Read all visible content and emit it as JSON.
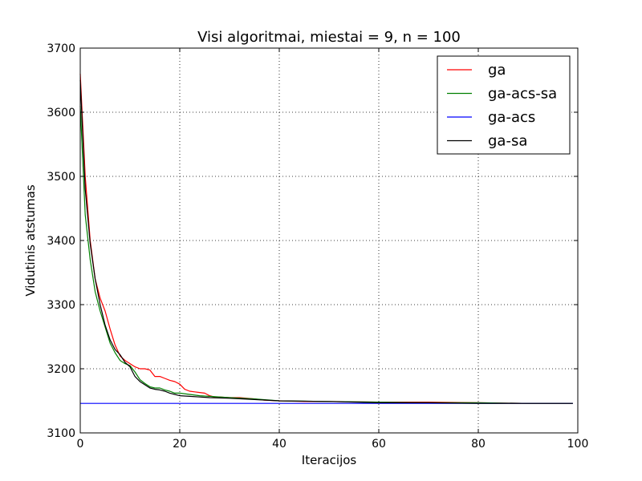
{
  "chart_data": {
    "type": "line",
    "title": "Visi algoritmai, miestai = 9, n = 100",
    "xlabel": "Iteracijos",
    "ylabel": "Vidutinis atstumas",
    "xlim": [
      0,
      100
    ],
    "ylim": [
      3100,
      3700
    ],
    "xticks": [
      0,
      20,
      40,
      60,
      80,
      100
    ],
    "yticks": [
      3100,
      3200,
      3300,
      3400,
      3500,
      3600,
      3700
    ],
    "grid": true,
    "legend_position": "top-right",
    "series": [
      {
        "name": "ga",
        "color": "#ff0000",
        "x": [
          0,
          1,
          2,
          3,
          4,
          5,
          6,
          7,
          8,
          9,
          10,
          11,
          12,
          13,
          14,
          15,
          16,
          17,
          18,
          19,
          20,
          21,
          22,
          23,
          24,
          25,
          26,
          27,
          28,
          30,
          32,
          35,
          37,
          40,
          45,
          50,
          60,
          70,
          80,
          90,
          99
        ],
        "y": [
          3660,
          3500,
          3400,
          3340,
          3310,
          3290,
          3262,
          3237,
          3220,
          3213,
          3208,
          3203,
          3200,
          3200,
          3198,
          3188,
          3188,
          3185,
          3182,
          3180,
          3176,
          3168,
          3165,
          3164,
          3163,
          3162,
          3158,
          3156,
          3156,
          3155,
          3155,
          3153,
          3151,
          3150,
          3149,
          3149,
          3148,
          3148,
          3147,
          3146,
          3146
        ]
      },
      {
        "name": "ga-acs-sa",
        "color": "#008000",
        "x": [
          0,
          1,
          2,
          3,
          4,
          5,
          6,
          7,
          8,
          9,
          10,
          11,
          12,
          13,
          14,
          15,
          16,
          17,
          18,
          19,
          20,
          22,
          24,
          26,
          30,
          35,
          40,
          50,
          60,
          70,
          80,
          90,
          99
        ],
        "y": [
          3610,
          3440,
          3370,
          3320,
          3290,
          3265,
          3240,
          3225,
          3213,
          3208,
          3205,
          3195,
          3183,
          3177,
          3172,
          3170,
          3170,
          3167,
          3165,
          3162,
          3162,
          3160,
          3158,
          3157,
          3155,
          3153,
          3150,
          3149,
          3148,
          3147,
          3147,
          3146,
          3146
        ]
      },
      {
        "name": "ga-acs",
        "color": "#0000ff",
        "x": [
          0,
          99
        ],
        "y": [
          3146,
          3146
        ]
      },
      {
        "name": "ga-sa",
        "color": "#000000",
        "x": [
          0,
          1,
          2,
          3,
          4,
          5,
          6,
          7,
          8,
          9,
          10,
          11,
          12,
          13,
          14,
          15,
          16,
          17,
          18,
          19,
          20,
          22,
          24,
          26,
          30,
          35,
          40,
          50,
          60,
          70,
          80,
          90,
          99
        ],
        "y": [
          3650,
          3480,
          3395,
          3340,
          3300,
          3268,
          3245,
          3230,
          3222,
          3210,
          3203,
          3188,
          3180,
          3175,
          3170,
          3168,
          3167,
          3165,
          3162,
          3160,
          3158,
          3157,
          3156,
          3155,
          3154,
          3152,
          3150,
          3149,
          3147,
          3147,
          3146,
          3146,
          3146
        ]
      }
    ]
  }
}
